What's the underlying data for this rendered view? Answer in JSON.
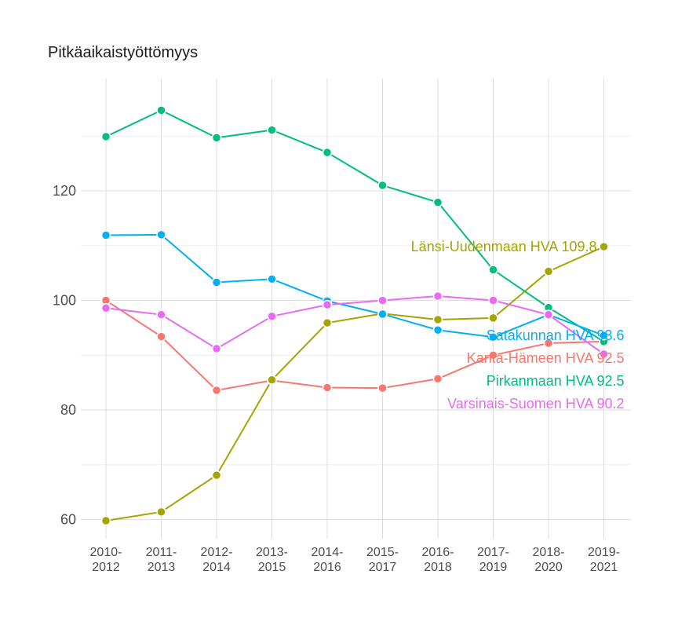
{
  "chart_data": {
    "type": "line",
    "title": "Pitkäaikaistyöttömyys",
    "xlabel": "",
    "ylabel": "",
    "categories": [
      [
        "2010-",
        "2012"
      ],
      [
        "2011-",
        "2013"
      ],
      [
        "2012-",
        "2014"
      ],
      [
        "2013-",
        "2015"
      ],
      [
        "2014-",
        "2016"
      ],
      [
        "2015-",
        "2017"
      ],
      [
        "2016-",
        "2018"
      ],
      [
        "2017-",
        "2019"
      ],
      [
        "2018-",
        "2020"
      ],
      [
        "2019-",
        "2021"
      ]
    ],
    "y_ticks": [
      60,
      80,
      100,
      120
    ],
    "ylim": [
      56.5,
      140.5
    ],
    "grid": true,
    "series": [
      {
        "name": "Kanta-Hämeen HVA",
        "color": "#F8766D",
        "values": [
          100.0,
          93.4,
          83.6,
          85.4,
          84.1,
          84.0,
          85.7,
          90.0,
          92.2,
          92.5
        ],
        "end_label": "Kanta-Hämeen HVA 92.5"
      },
      {
        "name": "Länsi-Uudenmaan HVA",
        "color": "#A3A500",
        "values": [
          59.8,
          61.4,
          68.1,
          85.5,
          95.9,
          97.6,
          96.5,
          96.8,
          105.3,
          109.8
        ],
        "end_label": "Länsi-Uudenmaan HVA 109.8"
      },
      {
        "name": "Pirkanmaan HVA",
        "color": "#00BF7D",
        "values": [
          129.9,
          134.7,
          129.7,
          131.1,
          127.0,
          121.0,
          117.9,
          105.6,
          98.7,
          92.5
        ],
        "end_label": "Pirkanmaan HVA 92.5"
      },
      {
        "name": "Satakunnan HVA",
        "color": "#00B0F6",
        "values": [
          111.9,
          112.0,
          103.3,
          103.9,
          99.9,
          97.5,
          94.6,
          93.3,
          97.4,
          93.6
        ],
        "end_label": "Satakunnan HVA 93.6"
      },
      {
        "name": "Varsinais-Suomen HVA",
        "color": "#E76BF3",
        "values": [
          98.6,
          97.4,
          91.2,
          97.1,
          99.2,
          100.0,
          100.8,
          100.0,
          97.4,
          90.2
        ],
        "end_label": "Varsinais-Suomen HVA 90.2"
      }
    ]
  }
}
